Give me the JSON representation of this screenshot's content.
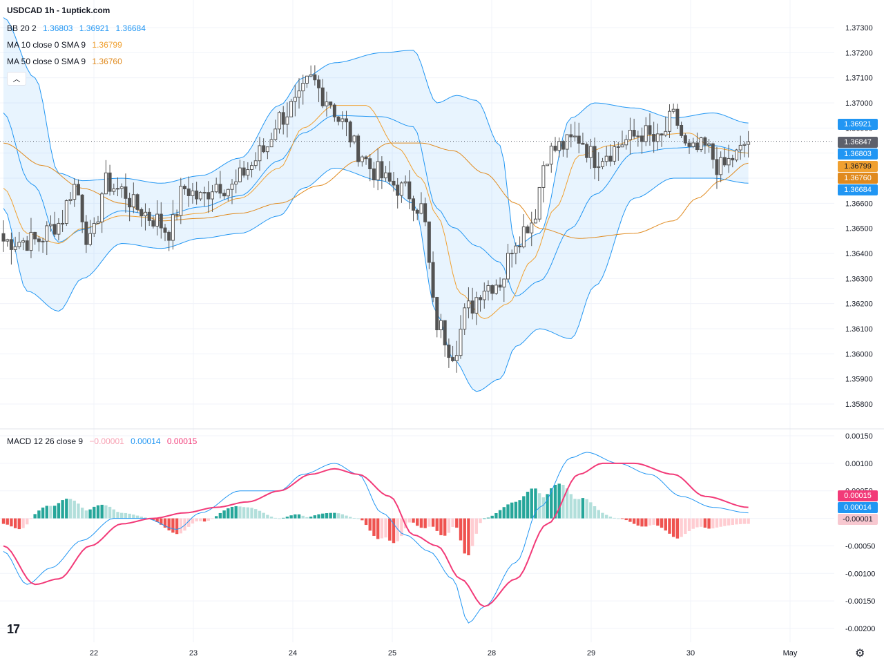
{
  "header": {
    "title": "USDCAD 1h - 1uptick.com"
  },
  "legend": {
    "bb": {
      "label": "BB 20 2",
      "values": [
        "1.36803",
        "1.36921",
        "1.36684"
      ]
    },
    "ma10": {
      "label": "MA 10 close 0 SMA 9",
      "value": "1.36799"
    },
    "ma50": {
      "label": "MA 50 close 0 SMA 9",
      "value": "1.36760"
    },
    "macd": {
      "label": "MACD 12 26 close 9",
      "values": [
        "−0.00001",
        "0.00014",
        "0.00015"
      ]
    }
  },
  "colors": {
    "up": "#26a69a",
    "down": "#ef5350",
    "bb": "#2196f3",
    "ma10": "#f0a030",
    "ma50": "#e08a1e",
    "macd": "#2196f3",
    "signal": "#f23a78",
    "candle": "#535353"
  },
  "icons": {
    "collapse": "chevron-up-icon",
    "logo": "tradingview-logo-icon",
    "settings": "gear-icon"
  },
  "price_tags": {
    "bb_upper": "1.36921",
    "last": "1.36847",
    "bb_mid": "1.36803",
    "ma10": "1.36799",
    "ma50": "1.36760",
    "bb_lower": "1.36684"
  },
  "macd_tags": {
    "signal": "0.00015",
    "macd": "0.00014",
    "hist": "-0.00001"
  },
  "chart_data": {
    "type": "candlestick",
    "title": "USDCAD 1h - 1uptick.com",
    "x_labels": [
      "22",
      "23",
      "24",
      "25",
      "28",
      "29",
      "30",
      "May"
    ],
    "price_ticks": [
      "1.37300",
      "1.37200",
      "1.37100",
      "1.37000",
      "1.36900",
      "1.36800",
      "1.36700",
      "1.36600",
      "1.36500",
      "1.36400",
      "1.36300",
      "1.36200",
      "1.36100",
      "1.36000",
      "1.35900",
      "1.35800"
    ],
    "price_range": [
      1.3574,
      1.3736
    ],
    "macd_ticks": [
      "0.00150",
      "0.00100",
      "0.00050",
      "0.00000",
      "-0.00050",
      "-0.00100",
      "-0.00150",
      "-0.00200"
    ],
    "macd_range": [
      -0.0022,
      0.0017
    ],
    "close_anchors": [
      [
        0,
        1.3645
      ],
      [
        8,
        1.3645
      ],
      [
        14,
        1.3652
      ],
      [
        18,
        1.3667
      ],
      [
        22,
        1.3644
      ],
      [
        26,
        1.3668
      ],
      [
        30,
        1.3665
      ],
      [
        34,
        1.3658
      ],
      [
        38,
        1.3654
      ],
      [
        42,
        1.3649
      ],
      [
        46,
        1.3666
      ],
      [
        50,
        1.3662
      ],
      [
        54,
        1.3668
      ],
      [
        58,
        1.3666
      ],
      [
        62,
        1.3674
      ],
      [
        66,
        1.3681
      ],
      [
        70,
        1.3694
      ],
      [
        74,
        1.3699
      ],
      [
        78,
        1.3709
      ],
      [
        82,
        1.3702
      ],
      [
        86,
        1.3692
      ],
      [
        90,
        1.3681
      ],
      [
        94,
        1.3673
      ],
      [
        98,
        1.3668
      ],
      [
        102,
        1.3665
      ],
      [
        106,
        1.3658
      ],
      [
        110,
        1.3612
      ],
      [
        114,
        1.3601
      ],
      [
        118,
        1.3618
      ],
      [
        122,
        1.3627
      ],
      [
        126,
        1.3629
      ],
      [
        130,
        1.3646
      ],
      [
        134,
        1.3653
      ],
      [
        138,
        1.368
      ],
      [
        142,
        1.3683
      ],
      [
        146,
        1.3686
      ],
      [
        150,
        1.3678
      ],
      [
        154,
        1.3681
      ],
      [
        158,
        1.3685
      ],
      [
        162,
        1.3688
      ],
      [
        166,
        1.3684
      ],
      [
        170,
        1.3694
      ],
      [
        174,
        1.368
      ],
      [
        178,
        1.3682
      ],
      [
        182,
        1.3674
      ],
      [
        186,
        1.3679
      ],
      [
        189,
        1.3685
      ]
    ],
    "bb_upper_anchors": [
      [
        0,
        1.3734
      ],
      [
        8,
        1.371
      ],
      [
        14,
        1.3672
      ],
      [
        20,
        1.3669
      ],
      [
        30,
        1.367
      ],
      [
        40,
        1.3668
      ],
      [
        50,
        1.3671
      ],
      [
        60,
        1.3678
      ],
      [
        70,
        1.3699
      ],
      [
        76,
        1.371
      ],
      [
        84,
        1.3716
      ],
      [
        96,
        1.372
      ],
      [
        104,
        1.3721
      ],
      [
        110,
        1.37
      ],
      [
        115,
        1.3703
      ],
      [
        120,
        1.3701
      ],
      [
        126,
        1.3683
      ],
      [
        130,
        1.3643
      ],
      [
        136,
        1.3648
      ],
      [
        144,
        1.3694
      ],
      [
        150,
        1.37
      ],
      [
        160,
        1.3698
      ],
      [
        170,
        1.3694
      ],
      [
        180,
        1.3696
      ],
      [
        189,
        1.3692
      ]
    ],
    "bb_lower_anchors": [
      [
        0,
        1.3658
      ],
      [
        6,
        1.3625
      ],
      [
        14,
        1.3617
      ],
      [
        20,
        1.363
      ],
      [
        30,
        1.3644
      ],
      [
        40,
        1.3642
      ],
      [
        50,
        1.3646
      ],
      [
        60,
        1.3648
      ],
      [
        70,
        1.3655
      ],
      [
        76,
        1.3666
      ],
      [
        84,
        1.3674
      ],
      [
        96,
        1.3669
      ],
      [
        104,
        1.366
      ],
      [
        110,
        1.3616
      ],
      [
        114,
        1.3598
      ],
      [
        120,
        1.3585
      ],
      [
        126,
        1.359
      ],
      [
        130,
        1.3603
      ],
      [
        136,
        1.361
      ],
      [
        144,
        1.3606
      ],
      [
        150,
        1.3627
      ],
      [
        160,
        1.3662
      ],
      [
        170,
        1.367
      ],
      [
        180,
        1.367
      ],
      [
        189,
        1.3668
      ]
    ],
    "ma10_anchors": [
      [
        0,
        1.3666
      ],
      [
        6,
        1.3648
      ],
      [
        14,
        1.3644
      ],
      [
        20,
        1.365
      ],
      [
        30,
        1.3655
      ],
      [
        40,
        1.3654
      ],
      [
        50,
        1.3656
      ],
      [
        60,
        1.3662
      ],
      [
        70,
        1.3674
      ],
      [
        76,
        1.369
      ],
      [
        84,
        1.3699
      ],
      [
        92,
        1.3699
      ],
      [
        100,
        1.3682
      ],
      [
        106,
        1.367
      ],
      [
        110,
        1.3655
      ],
      [
        116,
        1.3624
      ],
      [
        122,
        1.3614
      ],
      [
        128,
        1.362
      ],
      [
        134,
        1.3637
      ],
      [
        140,
        1.3658
      ],
      [
        146,
        1.3679
      ],
      [
        154,
        1.3683
      ],
      [
        164,
        1.3687
      ],
      [
        174,
        1.3688
      ],
      [
        180,
        1.3682
      ],
      [
        189,
        1.368
      ]
    ],
    "ma50_anchors": [
      [
        0,
        1.3684
      ],
      [
        10,
        1.3675
      ],
      [
        20,
        1.3666
      ],
      [
        30,
        1.366
      ],
      [
        40,
        1.3653
      ],
      [
        50,
        1.3654
      ],
      [
        60,
        1.3656
      ],
      [
        70,
        1.366
      ],
      [
        80,
        1.3667
      ],
      [
        90,
        1.3677
      ],
      [
        98,
        1.3684
      ],
      [
        106,
        1.3684
      ],
      [
        114,
        1.3681
      ],
      [
        122,
        1.3672
      ],
      [
        130,
        1.366
      ],
      [
        136,
        1.365
      ],
      [
        146,
        1.3646
      ],
      [
        160,
        1.3648
      ],
      [
        170,
        1.3653
      ],
      [
        176,
        1.3662
      ],
      [
        182,
        1.3669
      ],
      [
        189,
        1.3676
      ]
    ],
    "macd_anchors": [
      [
        0,
        -0.0006
      ],
      [
        6,
        -0.0012
      ],
      [
        12,
        -0.0009
      ],
      [
        20,
        -0.0004
      ],
      [
        28,
        0.0
      ],
      [
        36,
        0.0
      ],
      [
        44,
        -0.0002
      ],
      [
        50,
        0.0001
      ],
      [
        60,
        0.0005
      ],
      [
        70,
        0.0005
      ],
      [
        76,
        0.0008
      ],
      [
        84,
        0.001
      ],
      [
        90,
        0.0008
      ],
      [
        96,
        0.0001
      ],
      [
        102,
        -0.0003
      ],
      [
        108,
        -0.0006
      ],
      [
        114,
        -0.0011
      ],
      [
        118,
        -0.0019
      ],
      [
        122,
        -0.0016
      ],
      [
        130,
        -0.0008
      ],
      [
        136,
        0.0002
      ],
      [
        144,
        0.0011
      ],
      [
        148,
        0.0012
      ],
      [
        156,
        0.001
      ],
      [
        164,
        0.0008
      ],
      [
        172,
        0.0004
      ],
      [
        180,
        0.0002
      ],
      [
        189,
        0.0001
      ]
    ],
    "signal_anchors": [
      [
        0,
        -0.0005
      ],
      [
        8,
        -0.0012
      ],
      [
        14,
        -0.0011
      ],
      [
        22,
        -0.0005
      ],
      [
        30,
        -0.0001
      ],
      [
        38,
        0.0
      ],
      [
        46,
        0.0001
      ],
      [
        54,
        0.0002
      ],
      [
        62,
        0.0003
      ],
      [
        70,
        0.0005
      ],
      [
        78,
        0.0008
      ],
      [
        84,
        0.0009
      ],
      [
        90,
        0.0008
      ],
      [
        98,
        0.0004
      ],
      [
        104,
        -0.0003
      ],
      [
        110,
        -0.0005
      ],
      [
        116,
        -0.0011
      ],
      [
        122,
        -0.0016
      ],
      [
        130,
        -0.0011
      ],
      [
        138,
        -0.0001
      ],
      [
        146,
        0.0008
      ],
      [
        152,
        0.001
      ],
      [
        160,
        0.001
      ],
      [
        170,
        0.0008
      ],
      [
        178,
        0.0004
      ],
      [
        189,
        0.0002
      ]
    ],
    "candle_count": 190
  }
}
